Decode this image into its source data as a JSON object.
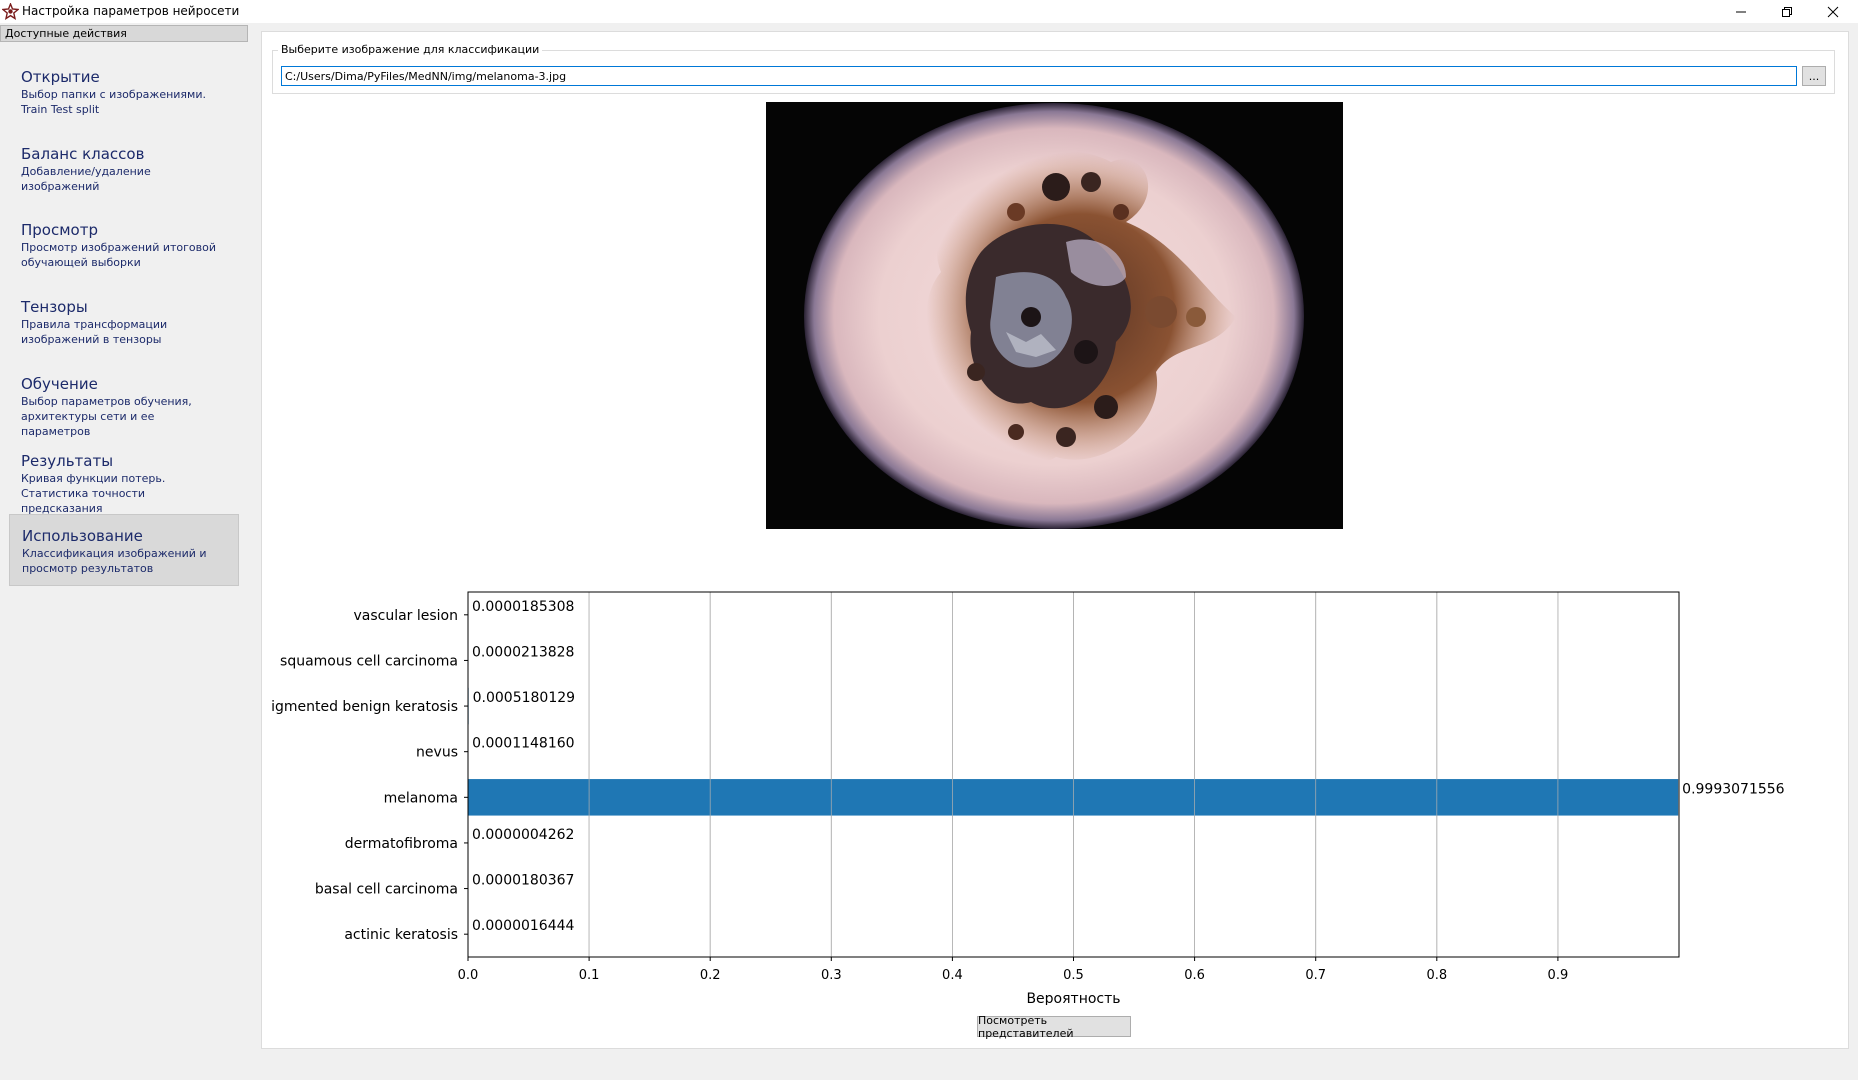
{
  "window": {
    "title": "Настройка параметров нейросети",
    "icon": "gear-star-icon"
  },
  "sidebar": {
    "header": "Доступные действия",
    "items": [
      {
        "title": "Открытие",
        "desc": "Выбор папки с изображениями. Train Test split",
        "active": false
      },
      {
        "title": "Баланс классов",
        "desc": "Добавление/удаление изображений",
        "active": false
      },
      {
        "title": "Просмотр",
        "desc": "Просмотр изображений итоговой обучающей выборки",
        "active": false
      },
      {
        "title": "Тензоры",
        "desc": "Правила трансформации изображений в тензоры",
        "active": false
      },
      {
        "title": "Обучение",
        "desc": "Выбор параметров обучения, архитектуры сети и ее параметров",
        "active": false
      },
      {
        "title": "Результаты",
        "desc": "Кривая функции потерь. Статистика точности предсказания",
        "active": false
      },
      {
        "title": "Использование",
        "desc": "Классификация изображений и просмотр результатов",
        "active": true
      }
    ]
  },
  "main": {
    "file_group_label": "Выберите изображение для классификации",
    "file_path": "C:/Users/Dima/PyFiles/MedNN/img/melanoma-3.jpg",
    "browse_label": "...",
    "bottom_button": "Посмотреть представителей"
  },
  "colors": {
    "bar": "#1f77b4",
    "nav_text": "#1c2a6a",
    "active_bg": "#d9d9d9"
  },
  "chart_data": {
    "type": "bar",
    "orientation": "horizontal",
    "categories": [
      "actinic keratosis",
      "basal cell carcinoma",
      "dermatofibroma",
      "melanoma",
      "nevus",
      "igmented benign keratosis",
      "squamous cell carcinoma",
      "vascular lesion"
    ],
    "values": [
      1.6444e-06,
      1.80367e-05,
      4.262e-07,
      0.9993071556,
      0.000114816,
      0.0005180129,
      2.13828e-05,
      1.85308e-05
    ],
    "value_labels": [
      "0.0000016444",
      "0.0000180367",
      "0.0000004262",
      "0.9993071556",
      "0.0001148160",
      "0.0005180129",
      "0.0000213828",
      "0.0000185308"
    ],
    "xlabel": "Вероятность",
    "ylabel": "",
    "xlim": [
      0,
      1
    ],
    "xticks": [
      "0.0",
      "0.1",
      "0.2",
      "0.3",
      "0.4",
      "0.5",
      "0.6",
      "0.7",
      "0.8",
      "0.9"
    ],
    "grid": "x"
  }
}
